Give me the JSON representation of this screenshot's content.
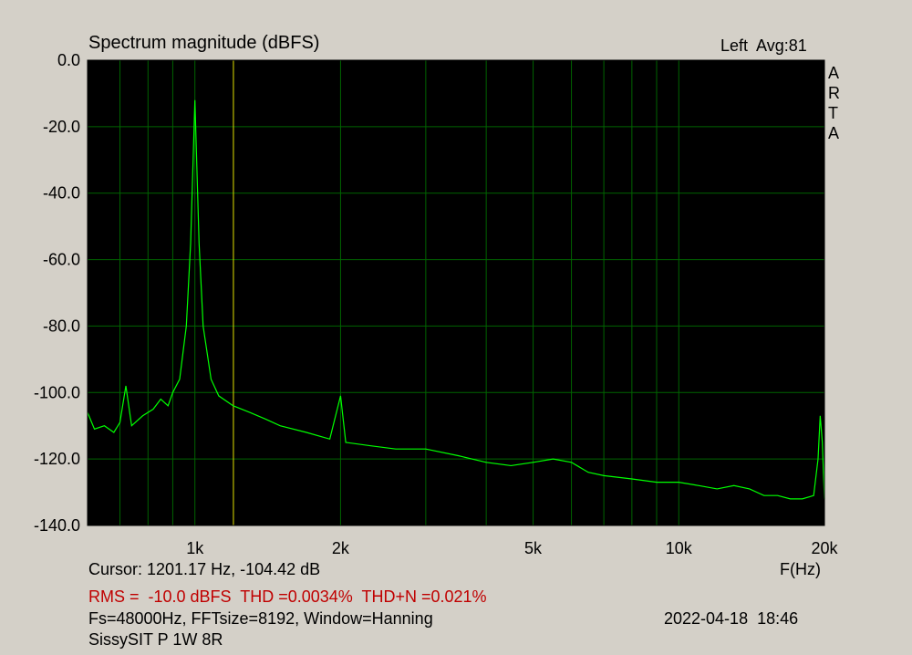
{
  "chart_data": {
    "type": "line",
    "title": "Spectrum magnitude (dBFS)",
    "channel_label": "Left  Avg:81",
    "brand": "ARTA",
    "x_label": "F(Hz)",
    "log_x": true,
    "grid": true,
    "xlim": [
      600,
      20000
    ],
    "ylim": [
      -140,
      0
    ],
    "xticks": [
      {
        "value": 1000,
        "label": "1k"
      },
      {
        "value": 2000,
        "label": "2k"
      },
      {
        "value": 5000,
        "label": "5k"
      },
      {
        "value": 10000,
        "label": "10k"
      },
      {
        "value": 20000,
        "label": "20k"
      }
    ],
    "xgrid": [
      700,
      800,
      900,
      3000,
      4000,
      6000,
      7000,
      8000,
      9000
    ],
    "yticks": [
      {
        "value": 0,
        "label": "0.0"
      },
      {
        "value": -20,
        "label": "-20.0"
      },
      {
        "value": -40,
        "label": "-40.0"
      },
      {
        "value": -60,
        "label": "-60.0"
      },
      {
        "value": -80,
        "label": "-80.0"
      },
      {
        "value": -100,
        "label": "-100.0"
      },
      {
        "value": -120,
        "label": "-120.0"
      },
      {
        "value": -140,
        "label": "-140.0"
      }
    ],
    "cursor_x": 1201.17,
    "cursor_text": "Cursor: 1201.17 Hz, -104.42 dB",
    "stats_text": "RMS =  -10.0 dBFS  THD =0.0034%  THD+N =0.021%",
    "settings_text": "Fs=48000Hz, FFTsize=8192, Window=Hanning",
    "timestamp": "2022-04-18  18:46",
    "device_text": "SissySIT P 1W 8R",
    "x": [
      600,
      620,
      650,
      680,
      700,
      720,
      740,
      780,
      820,
      850,
      880,
      900,
      930,
      960,
      980,
      1000,
      1020,
      1040,
      1080,
      1120,
      1200,
      1300,
      1400,
      1500,
      1700,
      1900,
      2000,
      2050,
      2300,
      2600,
      3000,
      3500,
      4000,
      4500,
      5000,
      5500,
      6000,
      6500,
      7000,
      8000,
      9000,
      10000,
      11000,
      12000,
      13000,
      14000,
      15000,
      16000,
      17000,
      18000,
      19000,
      19400,
      19600,
      19800,
      20000
    ],
    "series": [
      {
        "name": "Spectrum",
        "color": "#00ff00",
        "values": [
          -106,
          -111,
          -110,
          -112,
          -109,
          -98,
          -110,
          -107,
          -105,
          -102,
          -104,
          -100,
          -96,
          -80,
          -55,
          -12,
          -55,
          -80,
          -96,
          -101,
          -104,
          -106,
          -108,
          -110,
          -112,
          -114,
          -101,
          -115,
          -116,
          -117,
          -117,
          -119,
          -121,
          -122,
          -121,
          -120,
          -121,
          -124,
          -125,
          -126,
          -127,
          -127,
          -128,
          -129,
          -128,
          -129,
          -131,
          -131,
          -132,
          -132,
          -131,
          -120,
          -107,
          -115,
          -132
        ]
      }
    ]
  }
}
